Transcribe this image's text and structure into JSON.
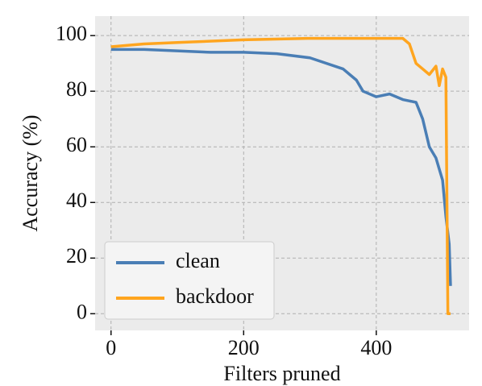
{
  "chart_data": {
    "type": "line",
    "xlabel": "Filters pruned",
    "ylabel": "Accuracy (%)",
    "xlim": [
      -24,
      540
    ],
    "ylim": [
      -6,
      107
    ],
    "xticks": [
      0,
      200,
      400
    ],
    "yticks": [
      0,
      20,
      40,
      60,
      80,
      100
    ],
    "grid": true,
    "legend": "lower left",
    "series": [
      {
        "name": "clean",
        "color": "#4a7eb5",
        "x": [
          0,
          50,
          100,
          150,
          200,
          250,
          300,
          350,
          360,
          370,
          380,
          400,
          420,
          440,
          460,
          470,
          480,
          490,
          500,
          505,
          510,
          512
        ],
        "values": [
          95,
          95,
          94.5,
          94,
          94,
          93.5,
          92,
          88,
          86,
          84,
          80,
          78,
          79,
          77,
          76,
          70,
          60,
          56,
          48,
          35,
          25,
          10
        ]
      },
      {
        "name": "backdoor",
        "color": "#ffa51f",
        "x": [
          0,
          50,
          100,
          200,
          300,
          400,
          440,
          450,
          460,
          470,
          480,
          490,
          495,
          500,
          505,
          508,
          512
        ],
        "values": [
          96,
          97,
          97.5,
          98.5,
          99,
          99,
          99,
          97,
          90,
          88,
          86,
          89,
          82,
          88,
          85,
          0,
          0
        ]
      }
    ]
  }
}
